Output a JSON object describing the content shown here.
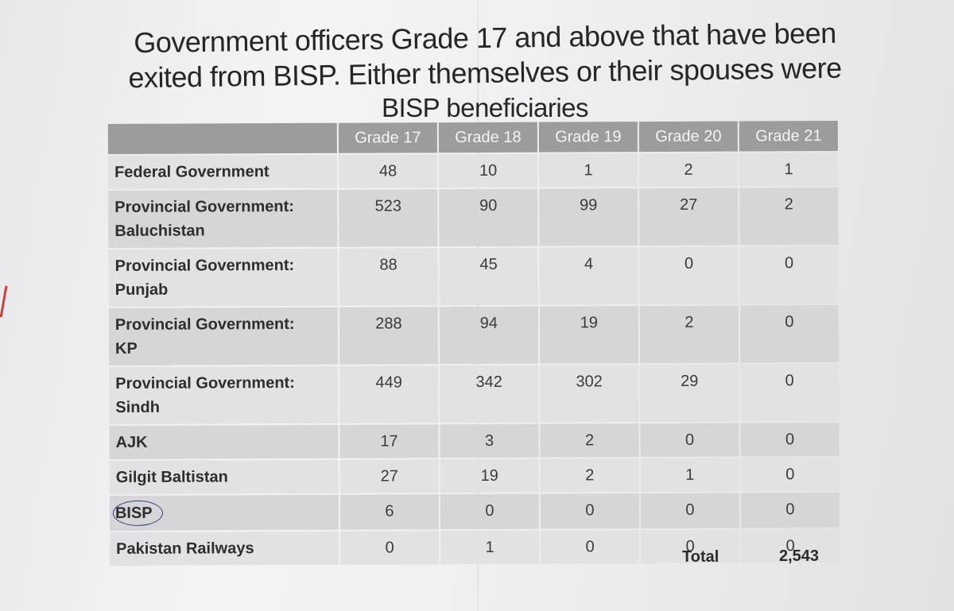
{
  "title": {
    "line1": "Government officers Grade 17 and above that have been",
    "line2": "exited from BISP. Either themselves or their spouses were",
    "line3": "BISP beneficiaries"
  },
  "table": {
    "headers": [
      "Grade 17",
      "Grade 18",
      "Grade 19",
      "Grade 20",
      "Grade 21"
    ],
    "rows": [
      {
        "name": "Federal Government",
        "values": [
          "48",
          "10",
          "1",
          "2",
          "1"
        ]
      },
      {
        "name": "Provincial Government:\nBaluchistan",
        "values": [
          "523",
          "90",
          "99",
          "27",
          "2"
        ]
      },
      {
        "name": "Provincial Government:\nPunjab",
        "values": [
          "88",
          "45",
          "4",
          "0",
          "0"
        ]
      },
      {
        "name": "Provincial Government:\nKP",
        "values": [
          "288",
          "94",
          "19",
          "2",
          "0"
        ]
      },
      {
        "name": "Provincial Government:\nSindh",
        "values": [
          "449",
          "342",
          "302",
          "29",
          "0"
        ]
      },
      {
        "name": "AJK",
        "values": [
          "17",
          "3",
          "2",
          "0",
          "0"
        ]
      },
      {
        "name": "Gilgit Baltistan",
        "values": [
          "27",
          "19",
          "2",
          "1",
          "0"
        ]
      },
      {
        "name": "BISP",
        "values": [
          "6",
          "0",
          "0",
          "0",
          "0"
        ]
      },
      {
        "name": "Pakistan Railways",
        "values": [
          "0",
          "1",
          "0",
          "0",
          "0"
        ]
      }
    ]
  },
  "total": {
    "label": "Total",
    "value": "2,543"
  }
}
